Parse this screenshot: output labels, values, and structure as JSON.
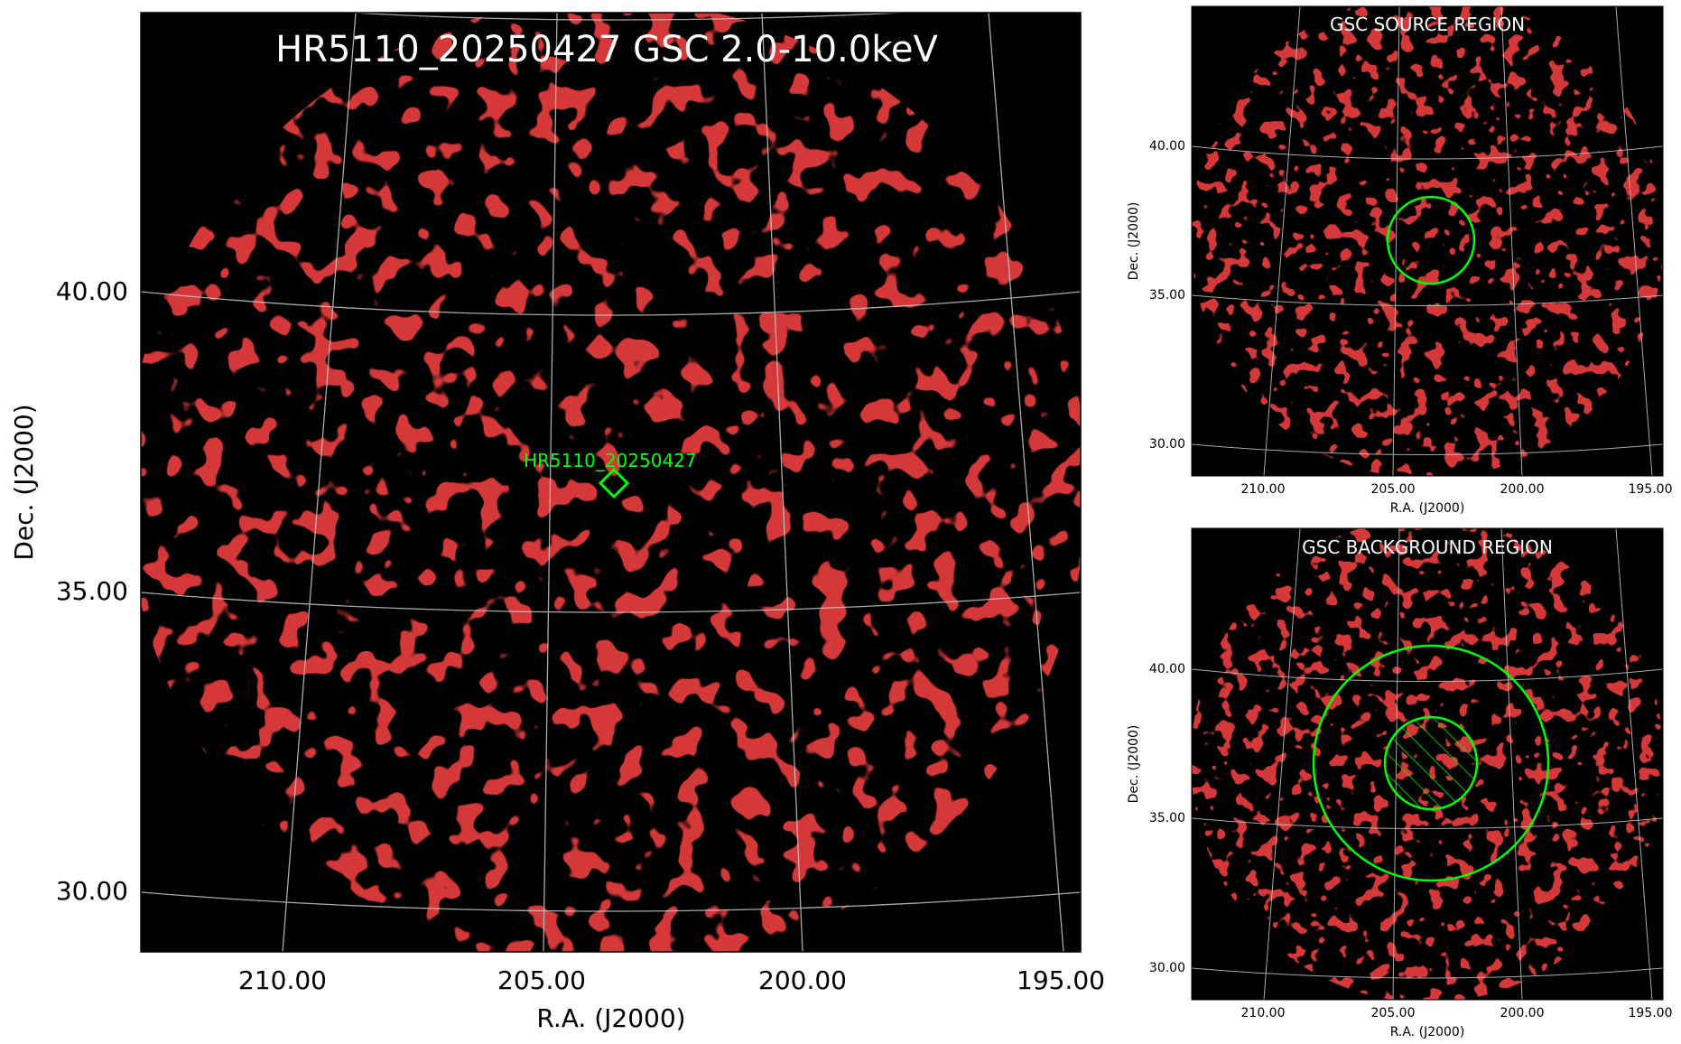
{
  "main_panel": {
    "title": "HR5110_20250427 GSC 2.0-10.0keV",
    "source_label": "HR5110_20250427",
    "xlabel": "R.A. (J2000)",
    "ylabel": "Dec. (J2000)",
    "ra_ticks": [
      "210.00",
      "205.00",
      "200.00",
      "195.00"
    ],
    "dec_ticks": [
      "40.00",
      "35.00",
      "30.00"
    ]
  },
  "source_panel": {
    "title": "GSC SOURCE REGION",
    "xlabel": "R.A. (J2000)",
    "ylabel": "Dec. (J2000)",
    "ra_ticks": [
      "210.00",
      "205.00",
      "200.00",
      "195.00"
    ],
    "dec_ticks": [
      "40.00",
      "35.00",
      "30.00"
    ]
  },
  "background_panel": {
    "title": "GSC BACKGROUND REGION",
    "xlabel": "R.A. (J2000)",
    "ylabel": "Dec. (J2000)",
    "ra_ticks": [
      "210.00",
      "205.00",
      "200.00",
      "195.00"
    ],
    "dec_ticks": [
      "40.00",
      "35.00",
      "30.00"
    ]
  },
  "colors": {
    "region_green": "#00ff00",
    "counts_red": "#a80a0a",
    "sky_background": "#000000",
    "grid_line": "#c8c8c8"
  }
}
